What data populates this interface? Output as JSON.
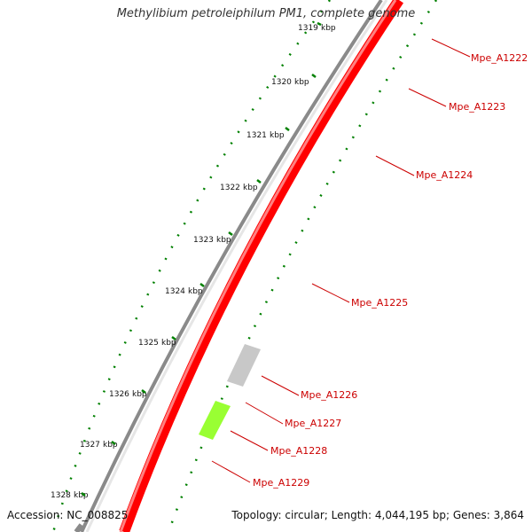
{
  "title": "Methylibium petroleiphilum PM1, complete genome",
  "footer": {
    "accession": "Accession: NC_008825",
    "info": "Topology: circular; Length: 4,044,195 bp; Genes: 3,864"
  },
  "scale": {
    "unit": "kbp",
    "ticks": [
      1319,
      1320,
      1321,
      1322,
      1323,
      1324,
      1325,
      1326,
      1327,
      1328
    ]
  },
  "colors": {
    "gene_red": "#ff0000",
    "gene_red_dark": "#c00000",
    "gene_grey": "#c8c8c8",
    "gene_green": "#99ff33",
    "tick_green": "#008000",
    "backbone": "#777777",
    "label_red": "#cc0000"
  },
  "genes": [
    {
      "name": "Mpe_A1222",
      "color": "gene_red"
    },
    {
      "name": "Mpe_A1223",
      "color": "gene_red"
    },
    {
      "name": "Mpe_A1224",
      "color": "gene_red"
    },
    {
      "name": "Mpe_A1225",
      "color": "gene_red"
    },
    {
      "name": "Mpe_A1226",
      "color": "gene_grey"
    },
    {
      "name": "Mpe_A1227",
      "color": "gene_red"
    },
    {
      "name": "Mpe_A1228",
      "color": "gene_green"
    },
    {
      "name": "Mpe_A1229",
      "color": "gene_red"
    }
  ]
}
